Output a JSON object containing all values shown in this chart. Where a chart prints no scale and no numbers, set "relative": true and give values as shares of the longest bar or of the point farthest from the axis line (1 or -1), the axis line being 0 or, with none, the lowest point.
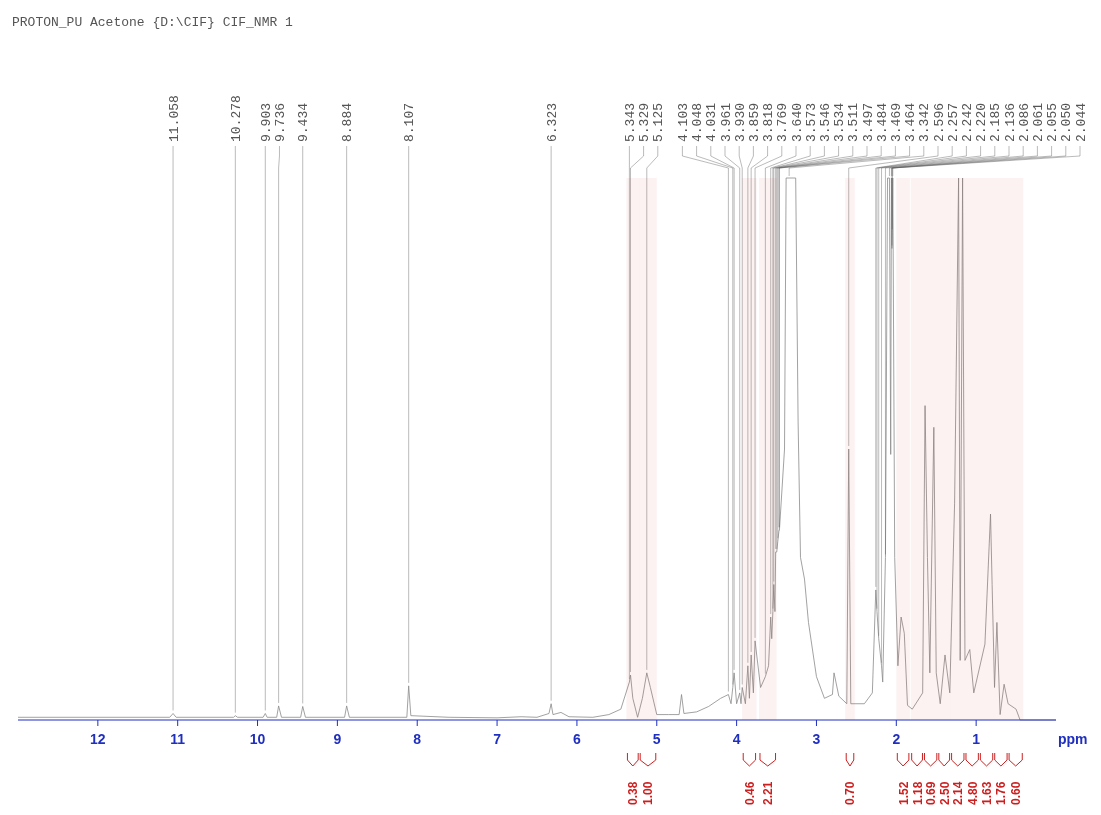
{
  "chart_data": {
    "type": "line",
    "title": "PROTON_PU Acetone {D:\\CIF} CIF_NMR 1",
    "xlabel": "ppm",
    "relative": true,
    "xlim": [
      13,
      0
    ],
    "xticks": [
      12,
      11,
      10,
      9,
      8,
      7,
      6,
      5,
      4,
      3,
      2,
      1
    ],
    "x": [
      13.0,
      11.1,
      11.058,
      11.02,
      10.3,
      10.278,
      10.25,
      9.93,
      9.903,
      9.88,
      9.76,
      9.736,
      9.7,
      9.46,
      9.434,
      9.4,
      8.91,
      8.884,
      8.85,
      8.13,
      8.107,
      8.08,
      7.6,
      7.0,
      6.7,
      6.5,
      6.35,
      6.323,
      6.3,
      6.2,
      6.1,
      5.8,
      5.6,
      5.45,
      5.343,
      5.329,
      5.3,
      5.24,
      5.18,
      5.125,
      5.08,
      5.0,
      4.85,
      4.72,
      4.69,
      4.66,
      4.5,
      4.35,
      4.2,
      4.103,
      4.07,
      4.048,
      4.031,
      4.0,
      3.961,
      3.945,
      3.93,
      3.89,
      3.859,
      3.84,
      3.818,
      3.79,
      3.769,
      3.7,
      3.64,
      3.6,
      3.573,
      3.56,
      3.546,
      3.534,
      3.52,
      3.511,
      3.497,
      3.484,
      3.469,
      3.464,
      3.4,
      3.38,
      3.342,
      3.26,
      3.23,
      3.2,
      3.15,
      3.1,
      3.0,
      2.9,
      2.8,
      2.78,
      2.72,
      2.62,
      2.596,
      2.57,
      2.4,
      2.3,
      2.257,
      2.242,
      2.22,
      2.185,
      2.17,
      2.136,
      2.11,
      2.086,
      2.07,
      2.061,
      2.055,
      2.05,
      2.044,
      2.02,
      1.98,
      1.94,
      1.9,
      1.86,
      1.8,
      1.67,
      1.64,
      1.61,
      1.58,
      1.53,
      1.5,
      1.45,
      1.39,
      1.33,
      1.27,
      1.22,
      1.2,
      1.17,
      1.14,
      1.08,
      1.03,
      0.89,
      0.82,
      0.8,
      0.77,
      0.74,
      0.7,
      0.65,
      0.6,
      0.5,
      0.45,
      0
    ],
    "series": [
      {
        "color": "#8a8a8a",
        "values": [
          0.005,
          0.005,
          0.012,
          0.005,
          0.005,
          0.008,
          0.005,
          0.005,
          0.012,
          0.005,
          0.005,
          0.026,
          0.005,
          0.005,
          0.025,
          0.005,
          0.005,
          0.026,
          0.005,
          0.005,
          0.063,
          0.008,
          0.005,
          0.004,
          0.006,
          0.005,
          0.012,
          0.03,
          0.01,
          0.014,
          0.006,
          0.005,
          0.01,
          0.02,
          0.07,
          0.083,
          0.04,
          0.005,
          0.04,
          0.087,
          0.06,
          0.01,
          0.01,
          0.01,
          0.047,
          0.012,
          0.015,
          0.025,
          0.04,
          0.047,
          0.03,
          0.06,
          0.087,
          0.03,
          0.05,
          0.03,
          0.06,
          0.03,
          0.1,
          0.04,
          0.12,
          0.05,
          0.146,
          0.06,
          0.08,
          0.1,
          0.19,
          0.15,
          0.2,
          0.25,
          0.2,
          0.31,
          0.31,
          0.33,
          0.35,
          0.35,
          0.5,
          1,
          1,
          1,
          0.55,
          0.3,
          0.26,
          0.18,
          0.08,
          0.04,
          0.047,
          0.087,
          0.044,
          0.03,
          0.5,
          0.03,
          0.03,
          0.05,
          0.24,
          0.2,
          0.15,
          0.1,
          0.07,
          0.3,
          1,
          1,
          0.49,
          1,
          0.87,
          0.9,
          1,
          0.3,
          0.1,
          0.19,
          0.16,
          0.027,
          0.02,
          0.05,
          0.58,
          0.3,
          0.087,
          0.54,
          0.087,
          0.03,
          0.12,
          0.05,
          0.4,
          1,
          0.11,
          1,
          0.11,
          0.13,
          0.05,
          0.14,
          0.38,
          0.25,
          0.06,
          0.18,
          0.01,
          0.066,
          0.03,
          0.02,
          0,
          0
        ]
      }
    ],
    "annotations": [
      {
        "text": "11.058",
        "x": 11.058,
        "y": 0.012
      },
      {
        "text": "10.278",
        "x": 10.278,
        "y": 0.008
      },
      {
        "text": "9.903",
        "x": 9.903,
        "y": 0.012
      },
      {
        "text": "9.736",
        "x": 9.736,
        "y": 0.026
      },
      {
        "text": "9.434",
        "x": 9.434,
        "y": 0.025
      },
      {
        "text": "8.884",
        "x": 8.884,
        "y": 0.026
      },
      {
        "text": "8.107",
        "x": 8.107,
        "y": 0.063
      },
      {
        "text": "6.323",
        "x": 6.323,
        "y": 0.03
      },
      {
        "text": "5.343",
        "x": 5.343,
        "y": 0.07
      },
      {
        "text": "5.329",
        "x": 5.329,
        "y": 0.083
      },
      {
        "text": "5.125",
        "x": 5.125,
        "y": 0.087
      },
      {
        "text": "4.103",
        "x": 4.103,
        "y": 0.047
      },
      {
        "text": "4.048",
        "x": 4.048,
        "y": 0.06
      },
      {
        "text": "4.031",
        "x": 4.031,
        "y": 0.087
      },
      {
        "text": "3.961",
        "x": 3.961,
        "y": 0.05
      },
      {
        "text": "3.930",
        "x": 3.93,
        "y": 0.06
      },
      {
        "text": "3.859",
        "x": 3.859,
        "y": 0.1
      },
      {
        "text": "3.818",
        "x": 3.818,
        "y": 0.12
      },
      {
        "text": "3.769",
        "x": 3.769,
        "y": 0.146
      },
      {
        "text": "3.640",
        "x": 3.64,
        "y": 0.08
      },
      {
        "text": "3.573",
        "x": 3.573,
        "y": 0.19
      },
      {
        "text": "3.546",
        "x": 3.546,
        "y": 0.2
      },
      {
        "text": "3.534",
        "x": 3.534,
        "y": 0.25
      },
      {
        "text": "3.511",
        "x": 3.511,
        "y": 0.31
      },
      {
        "text": "3.497",
        "x": 3.497,
        "y": 0.31
      },
      {
        "text": "3.484",
        "x": 3.484,
        "y": 0.33
      },
      {
        "text": "3.469",
        "x": 3.469,
        "y": 0.35
      },
      {
        "text": "3.464",
        "x": 3.464,
        "y": 0.35
      },
      {
        "text": "3.342",
        "x": 3.342,
        "y": 1
      },
      {
        "text": "2.596",
        "x": 2.596,
        "y": 0.5
      },
      {
        "text": "2.257",
        "x": 2.257,
        "y": 0.24
      },
      {
        "text": "2.242",
        "x": 2.242,
        "y": 0.2
      },
      {
        "text": "2.220",
        "x": 2.22,
        "y": 0.15
      },
      {
        "text": "2.185",
        "x": 2.185,
        "y": 0.1
      },
      {
        "text": "2.136",
        "x": 2.136,
        "y": 0.3
      },
      {
        "text": "2.086",
        "x": 2.086,
        "y": 1
      },
      {
        "text": "2.061",
        "x": 2.061,
        "y": 1
      },
      {
        "text": "2.055",
        "x": 2.055,
        "y": 0.87
      },
      {
        "text": "2.050",
        "x": 2.05,
        "y": 0.9
      },
      {
        "text": "2.044",
        "x": 2.044,
        "y": 1
      }
    ],
    "bands": [
      {
        "axis": "x",
        "from": 5.38,
        "to": 5.22,
        "label": "0.38",
        "color": "#cc2020"
      },
      {
        "axis": "x",
        "from": 5.22,
        "to": 5.0,
        "label": "1.00",
        "color": "#cc2020"
      },
      {
        "axis": "x",
        "from": 3.93,
        "to": 3.75,
        "label": "0.46",
        "color": "#cc2020"
      },
      {
        "axis": "x",
        "from": 3.72,
        "to": 3.5,
        "label": "2.21",
        "color": "#cc2020"
      },
      {
        "axis": "x",
        "from": 2.64,
        "to": 2.52,
        "label": "0.70",
        "color": "#cc2020"
      },
      {
        "axis": "x",
        "from": 2.0,
        "to": 1.83,
        "label": "1.52",
        "color": "#cc2020"
      },
      {
        "axis": "x",
        "from": 1.82,
        "to": 1.66,
        "label": "1.18",
        "color": "#cc2020"
      },
      {
        "axis": "x",
        "from": 1.66,
        "to": 1.48,
        "label": "0.69",
        "color": "#cc2020"
      },
      {
        "axis": "x",
        "from": 1.48,
        "to": 1.32,
        "label": "2.50",
        "color": "#cc2020"
      },
      {
        "axis": "x",
        "from": 1.32,
        "to": 1.14,
        "label": "2.14",
        "color": "#cc2020"
      },
      {
        "axis": "x",
        "from": 1.14,
        "to": 0.96,
        "label": "4.80",
        "color": "#cc2020"
      },
      {
        "axis": "x",
        "from": 0.96,
        "to": 0.78,
        "label": "1.63",
        "color": "#cc2020"
      },
      {
        "axis": "x",
        "from": 0.78,
        "to": 0.6,
        "label": "1.76",
        "color": "#cc2020"
      },
      {
        "axis": "x",
        "from": 0.6,
        "to": 0.41,
        "label": "0.60",
        "color": "#cc2020"
      }
    ]
  }
}
